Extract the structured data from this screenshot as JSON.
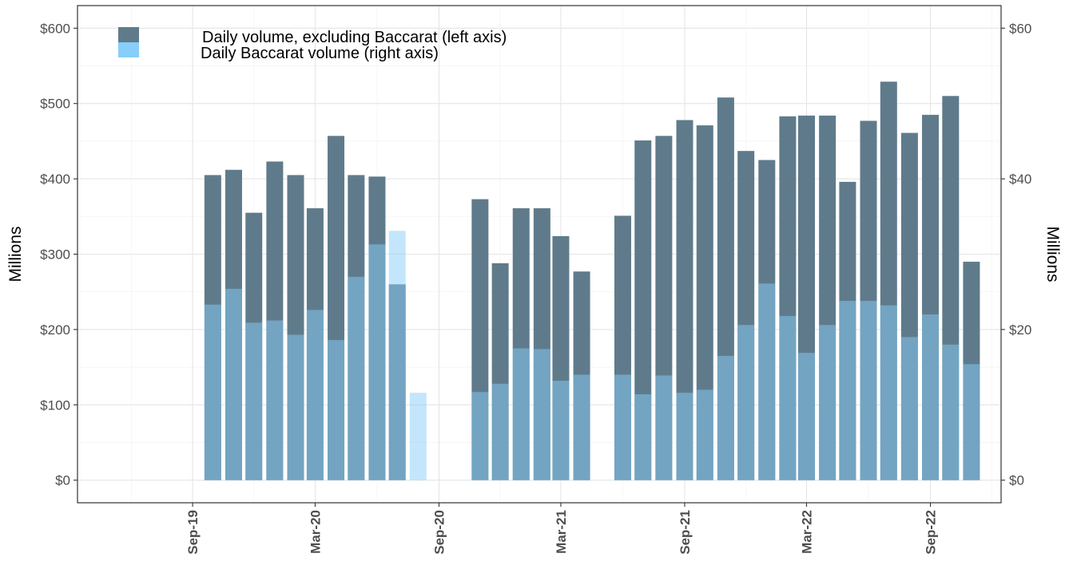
{
  "chart_data": {
    "type": "bar",
    "y_left": {
      "label": "Millions",
      "range": [
        -30,
        630
      ],
      "ticks": [
        0,
        100,
        200,
        300,
        400,
        500,
        600
      ],
      "tick_labels": [
        "$0",
        "$100",
        "$200",
        "$300",
        "$400",
        "$500",
        "$600"
      ]
    },
    "y_right": {
      "label": "Millions",
      "range": [
        -3,
        63
      ],
      "ticks": [
        0,
        20,
        40,
        60
      ],
      "tick_labels": [
        "$0",
        "$20",
        "$40",
        "$60"
      ]
    },
    "x_axis": {
      "range": [
        "2019-03-14",
        "2022-12-15"
      ],
      "ticks": [
        "2019-09-01",
        "2020-03-01",
        "2020-09-01",
        "2021-03-01",
        "2021-09-01",
        "2022-03-01",
        "2022-09-01"
      ],
      "tick_labels": [
        "Sep-19",
        "Mar-20",
        "Sep-20",
        "Mar-21",
        "Sep-21",
        "Mar-22",
        "Sep-22"
      ]
    },
    "grid": true,
    "legend_position": "top-left",
    "series": [
      {
        "name": "Daily volume, excluding Baccarat (left axis)",
        "axis": "left",
        "color": "#5f7b8b",
        "points": [
          [
            "2019-10-01",
            405
          ],
          [
            "2019-11-01",
            412
          ],
          [
            "2019-12-01",
            355
          ],
          [
            "2020-01-01",
            423
          ],
          [
            "2020-02-01",
            405
          ],
          [
            "2020-03-01",
            361
          ],
          [
            "2020-04-01",
            457
          ],
          [
            "2020-05-01",
            405
          ],
          [
            "2020-06-01",
            403
          ],
          [
            "2020-07-01",
            260
          ],
          [
            "2020-11-01",
            373
          ],
          [
            "2020-12-01",
            288
          ],
          [
            "2021-01-01",
            361
          ],
          [
            "2021-02-01",
            361
          ],
          [
            "2021-03-01",
            324
          ],
          [
            "2021-04-01",
            277
          ],
          [
            "2021-06-01",
            351
          ],
          [
            "2021-07-01",
            451
          ],
          [
            "2021-08-01",
            457
          ],
          [
            "2021-09-01",
            478
          ],
          [
            "2021-10-01",
            471
          ],
          [
            "2021-11-01",
            508
          ],
          [
            "2021-12-01",
            437
          ],
          [
            "2022-01-01",
            425
          ],
          [
            "2022-02-01",
            483
          ],
          [
            "2022-03-01",
            484
          ],
          [
            "2022-04-01",
            484
          ],
          [
            "2022-05-01",
            396
          ],
          [
            "2022-06-01",
            477
          ],
          [
            "2022-07-01",
            529
          ],
          [
            "2022-08-01",
            461
          ],
          [
            "2022-09-01",
            485
          ],
          [
            "2022-10-01",
            510
          ],
          [
            "2022-11-01",
            290
          ]
        ]
      },
      {
        "name": "Daily Baccarat volume (right axis)",
        "axis": "right",
        "color": "#87cefa",
        "points": [
          [
            "2019-10-01",
            23.3
          ],
          [
            "2019-11-01",
            25.4
          ],
          [
            "2019-12-01",
            20.9
          ],
          [
            "2020-01-01",
            21.2
          ],
          [
            "2020-02-01",
            19.3
          ],
          [
            "2020-03-01",
            22.6
          ],
          [
            "2020-04-01",
            18.6
          ],
          [
            "2020-05-01",
            27.0
          ],
          [
            "2020-06-01",
            31.3
          ],
          [
            "2020-07-01",
            33.1
          ],
          [
            "2020-08-01",
            11.6
          ],
          [
            "2020-11-01",
            11.7
          ],
          [
            "2020-12-01",
            12.8
          ],
          [
            "2021-01-01",
            17.5
          ],
          [
            "2021-02-01",
            17.4
          ],
          [
            "2021-03-01",
            13.2
          ],
          [
            "2021-04-01",
            14.0
          ],
          [
            "2021-06-01",
            14.0
          ],
          [
            "2021-07-01",
            11.4
          ],
          [
            "2021-08-01",
            13.9
          ],
          [
            "2021-09-01",
            11.6
          ],
          [
            "2021-10-01",
            12.0
          ],
          [
            "2021-11-01",
            16.5
          ],
          [
            "2021-12-01",
            20.6
          ],
          [
            "2022-01-01",
            26.1
          ],
          [
            "2022-02-01",
            21.8
          ],
          [
            "2022-03-01",
            16.9
          ],
          [
            "2022-04-01",
            20.6
          ],
          [
            "2022-05-01",
            23.8
          ],
          [
            "2022-06-01",
            23.8
          ],
          [
            "2022-07-01",
            23.2
          ],
          [
            "2022-08-01",
            19.0
          ],
          [
            "2022-09-01",
            22.0
          ],
          [
            "2022-10-01",
            18.0
          ],
          [
            "2022-11-01",
            15.4
          ]
        ]
      }
    ]
  }
}
